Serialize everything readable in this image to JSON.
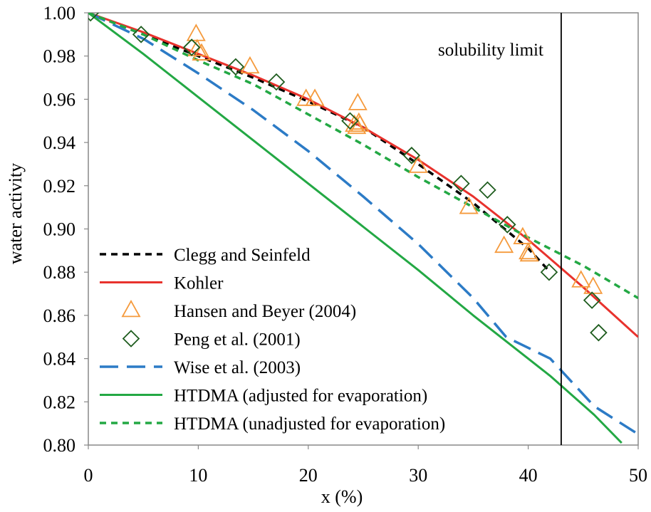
{
  "chart_data": {
    "type": "line",
    "title": "",
    "xlabel": "x (%)",
    "ylabel": "water activity",
    "xlim": [
      0,
      50
    ],
    "ylim": [
      0.8,
      1.0
    ],
    "x_ticks": [
      "0",
      "10",
      "20",
      "30",
      "40",
      "50"
    ],
    "y_ticks": [
      "0.80",
      "0.82",
      "0.84",
      "0.86",
      "0.88",
      "0.90",
      "0.92",
      "0.94",
      "0.96",
      "0.98",
      "1.00"
    ],
    "grid": false,
    "legend_position": "bottom-left",
    "vertical_line": {
      "x": 43,
      "label": "solubility limit"
    },
    "series": [
      {
        "name": "Clegg and Seinfeld",
        "kind": "line",
        "style": "short-dash",
        "color": "#000000",
        "x": [
          0,
          5,
          10,
          15,
          20,
          25,
          30,
          35,
          40,
          42
        ],
        "y": [
          1.0,
          0.99,
          0.98,
          0.97,
          0.959,
          0.947,
          0.93,
          0.912,
          0.891,
          0.88
        ]
      },
      {
        "name": "Kohler",
        "kind": "line",
        "style": "solid",
        "color": "#e8322d",
        "x": [
          0,
          5,
          10,
          15,
          20,
          25,
          30,
          35,
          40,
          45,
          50
        ],
        "y": [
          1.0,
          0.991,
          0.981,
          0.971,
          0.96,
          0.947,
          0.932,
          0.915,
          0.895,
          0.873,
          0.85
        ]
      },
      {
        "name": "Hansen and Beyer (2004)",
        "kind": "scatter",
        "marker": "triangle",
        "color": "#f59a3c",
        "x": [
          9.8,
          9.9,
          10.3,
          14.7,
          19.8,
          20.6,
          24.2,
          24.5,
          24.6,
          24.7,
          24.4,
          30.0,
          34.6,
          37.8,
          39.5,
          40.0,
          40.1,
          44.8,
          45.9
        ],
        "y": [
          0.99,
          0.983,
          0.981,
          0.975,
          0.96,
          0.96,
          0.948,
          0.958,
          0.949,
          0.948,
          0.947,
          0.929,
          0.91,
          0.892,
          0.896,
          0.889,
          0.888,
          0.876,
          0.873
        ]
      },
      {
        "name": "Peng et al. (2001)",
        "kind": "scatter",
        "marker": "diamond",
        "color": "#1e5c1e",
        "x": [
          0.2,
          4.8,
          9.4,
          13.4,
          17.1,
          23.8,
          29.4,
          33.9,
          36.3,
          38.1,
          41.9,
          45.8,
          46.4
        ],
        "y": [
          1.0,
          0.99,
          0.984,
          0.975,
          0.968,
          0.95,
          0.934,
          0.921,
          0.918,
          0.902,
          0.88,
          0.867,
          0.852
        ]
      },
      {
        "name": "Wise et al. (2003)",
        "kind": "line",
        "style": "long-dash",
        "color": "#2c7bc6",
        "x": [
          0,
          5,
          10,
          15,
          20,
          25,
          30,
          35,
          38,
          42,
          46,
          50
        ],
        "y": [
          1.0,
          0.988,
          0.972,
          0.955,
          0.936,
          0.915,
          0.893,
          0.868,
          0.85,
          0.84,
          0.818,
          0.805
        ]
      },
      {
        "name": "HTDMA (adjusted for evaporation)",
        "kind": "line",
        "style": "solid",
        "color": "#23a844",
        "x": [
          0,
          5,
          10,
          15,
          20,
          25,
          30,
          35,
          38,
          42,
          46,
          48.5
        ],
        "y": [
          1.0,
          0.981,
          0.961,
          0.941,
          0.921,
          0.901,
          0.881,
          0.86,
          0.848,
          0.832,
          0.814,
          0.801
        ]
      },
      {
        "name": "HTDMA (unadjusted for evaporation)",
        "kind": "line",
        "style": "short-dash",
        "color": "#23a844",
        "x": [
          0,
          5,
          10,
          15,
          20,
          25,
          30,
          35,
          40,
          45,
          50
        ],
        "y": [
          1.0,
          0.99,
          0.978,
          0.967,
          0.953,
          0.939,
          0.924,
          0.91,
          0.896,
          0.883,
          0.868
        ]
      }
    ]
  }
}
